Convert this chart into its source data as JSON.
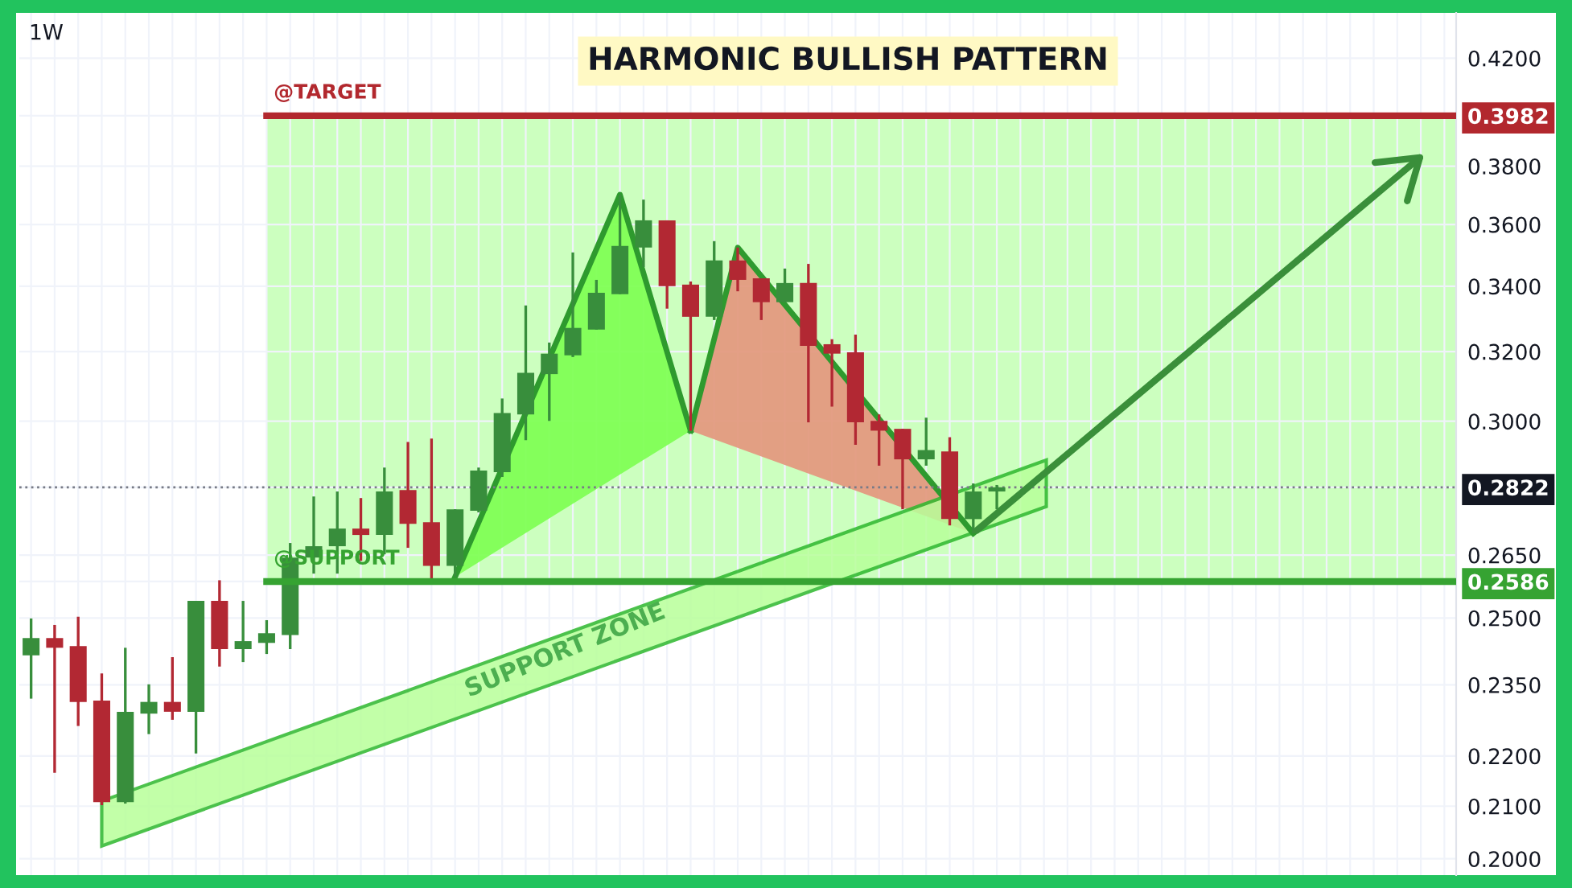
{
  "chart_data": {
    "type": "candlestick",
    "title": "HARMONIC BULLISH PATTERN",
    "subtitle": "1W",
    "categories": [
      null,
      null,
      null,
      null,
      null,
      null,
      null,
      null,
      null,
      null,
      null,
      null,
      null,
      null,
      null,
      null,
      null,
      null,
      null,
      null,
      null,
      null,
      null,
      null,
      null,
      null,
      null,
      null,
      null,
      null,
      null,
      null,
      null,
      null,
      null,
      null,
      null,
      null,
      null,
      null,
      null,
      null,
      null,
      null,
      null,
      null,
      null,
      null,
      null,
      null,
      null,
      null,
      null,
      null,
      null,
      null,
      null,
      null,
      null,
      null,
      null
    ],
    "ohlc": [
      [
        0.2415,
        0.2499,
        0.232,
        0.2454
      ],
      [
        0.2454,
        0.2484,
        0.2166,
        0.2432
      ],
      [
        0.2436,
        0.2503,
        0.2262,
        0.2313
      ],
      [
        0.2316,
        0.2375,
        0.2102,
        0.2108
      ],
      [
        0.2108,
        0.2432,
        0.2105,
        0.2292
      ],
      [
        0.2288,
        0.2351,
        0.2245,
        0.2313
      ],
      [
        0.2313,
        0.2411,
        0.2275,
        0.2292
      ],
      [
        0.2292,
        0.254,
        0.2205,
        0.254
      ],
      [
        0.254,
        0.2589,
        0.239,
        0.2429
      ],
      [
        0.2429,
        0.254,
        0.24,
        0.2447
      ],
      [
        0.2443,
        0.2495,
        0.2418,
        0.2465
      ],
      [
        0.2461,
        0.268,
        0.2429,
        0.2644
      ],
      [
        0.2644,
        0.2798,
        0.2605,
        0.2672
      ],
      [
        0.2672,
        0.2811,
        0.2605,
        0.2716
      ],
      [
        0.2716,
        0.2794,
        0.2636,
        0.27
      ],
      [
        0.27,
        0.2874,
        0.2652,
        0.2811
      ],
      [
        0.2815,
        0.2943,
        0.2668,
        0.2728
      ],
      [
        0.2732,
        0.2952,
        0.2586,
        0.2624
      ],
      [
        0.2624,
        0.2765,
        0.2597,
        0.2765
      ],
      [
        0.2761,
        0.2874,
        0.2757,
        0.2866
      ],
      [
        0.2862,
        0.3064,
        0.2849,
        0.3023
      ],
      [
        0.3019,
        0.334,
        0.2948,
        0.3138
      ],
      [
        0.3134,
        0.3227,
        0.3001,
        0.3194
      ],
      [
        0.3189,
        0.3508,
        0.3184,
        0.3271
      ],
      [
        0.3266,
        0.342,
        0.3266,
        0.3379
      ],
      [
        0.3375,
        0.3701,
        0.3375,
        0.3529
      ],
      [
        0.3524,
        0.3684,
        0.3461,
        0.3614
      ],
      [
        0.3614,
        0.3614,
        0.333,
        0.34
      ],
      [
        0.3405,
        0.3415,
        0.2974,
        0.3305
      ],
      [
        0.3305,
        0.3545,
        0.3295,
        0.3482
      ],
      [
        0.3482,
        0.3524,
        0.3384,
        0.342
      ],
      [
        0.3425,
        0.3425,
        0.3295,
        0.335
      ],
      [
        0.335,
        0.3456,
        0.335,
        0.341
      ],
      [
        0.341,
        0.3471,
        0.2997,
        0.3217
      ],
      [
        0.3222,
        0.3237,
        0.3041,
        0.3194
      ],
      [
        0.3198,
        0.3251,
        0.2935,
        0.2997
      ],
      [
        0.3001,
        0.3019,
        0.2879,
        0.2974
      ],
      [
        0.2979,
        0.2979,
        0.2765,
        0.2896
      ],
      [
        0.2896,
        0.301,
        0.2879,
        0.2921
      ],
      [
        0.2917,
        0.2956,
        0.2724,
        0.274
      ],
      [
        0.274,
        0.2832,
        0.2704,
        0.2811
      ],
      [
        0.2811,
        0.2828,
        0.2765,
        0.2822
      ],
      null,
      null,
      null,
      null,
      null,
      null,
      null,
      null,
      null,
      null,
      null,
      null,
      null,
      null,
      null,
      null,
      null,
      null,
      null
    ],
    "colors": [
      "#388e3c",
      "#b22833",
      "#b22833",
      "#b22833",
      "#388e3c",
      "#388e3c",
      "#b22833",
      "#388e3c",
      "#b22833",
      "#388e3c",
      "#388e3c",
      "#388e3c",
      "#388e3c",
      "#388e3c",
      "#b22833",
      "#388e3c",
      "#b22833",
      "#b22833",
      "#388e3c",
      "#388e3c",
      "#388e3c",
      "#388e3c",
      "#388e3c",
      "#388e3c",
      "#388e3c",
      "#388e3c",
      "#388e3c",
      "#b22833",
      "#b22833",
      "#388e3c",
      "#b22833",
      "#b22833",
      "#388e3c",
      "#b22833",
      "#b22833",
      "#b22833",
      "#b22833",
      "#b22833",
      "#388e3c",
      "#b22833",
      "#388e3c",
      "#388e3c",
      null,
      null,
      null,
      null,
      null,
      null,
      null,
      null,
      null,
      null,
      null,
      null,
      null,
      null,
      null,
      null,
      null,
      null,
      null
    ],
    "log": "y",
    "ylim": [
      0.197,
      0.438
    ],
    "yticks": [
      {
        "value": 0.42,
        "label": "0.4200"
      },
      {
        "value": 0.3982,
        "label": "0.3982"
      },
      {
        "value": 0.38,
        "label": "0.3800"
      },
      {
        "value": 0.36,
        "label": "0.3600"
      },
      {
        "value": 0.34,
        "label": "0.3400"
      },
      {
        "value": 0.32,
        "label": "0.3200"
      },
      {
        "value": 0.3,
        "label": "0.3000"
      },
      {
        "value": 0.2822,
        "label": "0.2822"
      },
      {
        "value": 0.265,
        "label": "0.2650"
      },
      {
        "value": 0.2586,
        "label": "0.2586"
      },
      {
        "value": 0.25,
        "label": "0.2500"
      },
      {
        "value": 0.235,
        "label": "0.2350"
      },
      {
        "value": 0.22,
        "label": "0.2200"
      },
      {
        "value": 0.21,
        "label": "0.2100"
      },
      {
        "value": 0.2,
        "label": "0.2000"
      }
    ],
    "ref_lines": [
      {
        "axis": "y",
        "value": 0.3982,
        "label": "@TARGET",
        "color": "#b2282e",
        "line_style": "solid"
      },
      {
        "axis": "y",
        "value": 0.2822,
        "label": null,
        "color": "#787b86",
        "line_style": "dotted"
      },
      {
        "axis": "y",
        "value": 0.2586,
        "label": "@SUPPORT",
        "color": "#36a332",
        "line_style": "solid"
      }
    ],
    "bands": [
      {
        "axis": "y",
        "from": 0.2586,
        "to": 0.3982,
        "label": null,
        "color": "#ccffbf"
      }
    ],
    "annotations": [
      "SUPPORT ZONE"
    ],
    "grid": true,
    "tick_labels": "y"
  }
}
